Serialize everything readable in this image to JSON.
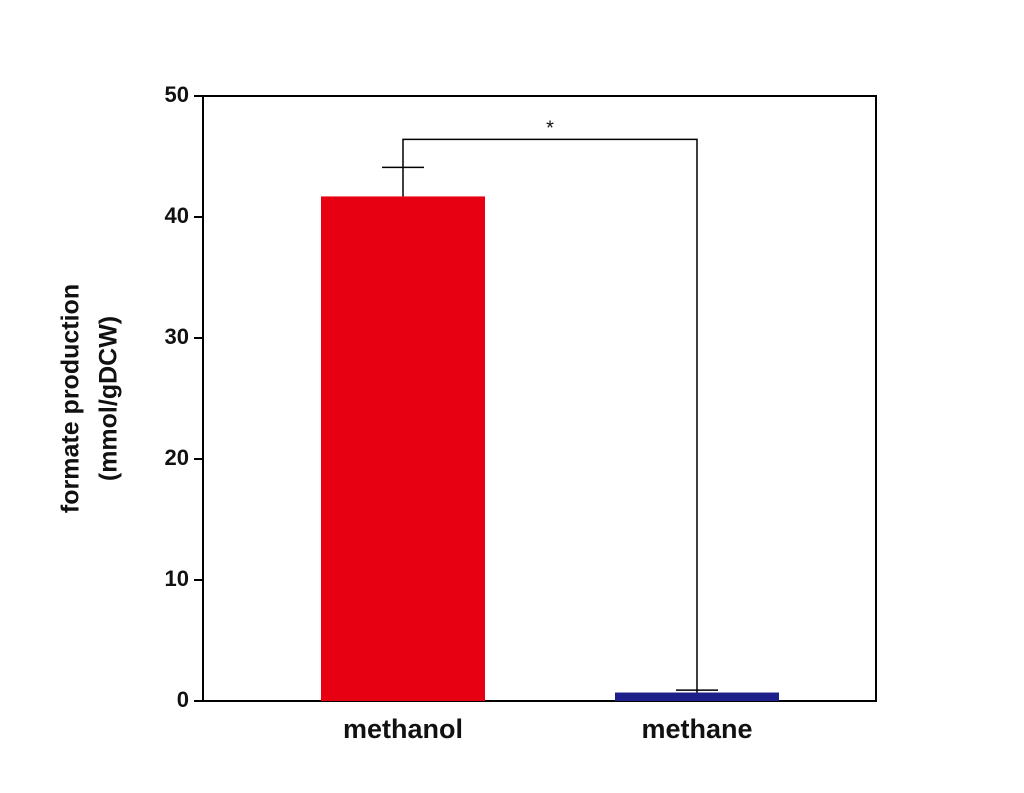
{
  "chart_data": {
    "type": "bar",
    "ylabel": [
      "formate production",
      "(mmol/gDCW)"
    ],
    "categories": [
      "methanol",
      "methane"
    ],
    "values": [
      41.7,
      0.7
    ],
    "errors": [
      2.4,
      0.2
    ],
    "colors": [
      "#e60012",
      "#1d2088"
    ],
    "ylim": [
      0,
      50
    ],
    "yticks": [
      0,
      10,
      20,
      30,
      40,
      50
    ],
    "significance": "*"
  }
}
